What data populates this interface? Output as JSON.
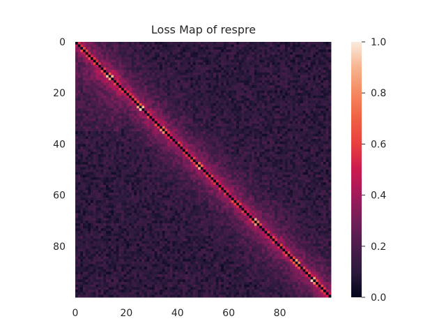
{
  "chart_data": {
    "type": "heatmap",
    "title": "Loss Map of respre",
    "xlabel": "",
    "ylabel": "",
    "grid_size": [
      100,
      100
    ],
    "x_ticks": [
      0,
      20,
      40,
      60,
      80
    ],
    "y_ticks": [
      0,
      20,
      40,
      60,
      80
    ],
    "colorbar": {
      "range": [
        0.0,
        1.0
      ],
      "ticks": [
        "0.0",
        "0.2",
        "0.4",
        "0.6",
        "0.8",
        "1.0"
      ],
      "colormap": "rocket",
      "colors": [
        "#03051a",
        "#2b1a3c",
        "#4c1d4b",
        "#711f57",
        "#a11a5b",
        "#cb1b4f",
        "#e83f3f",
        "#f06043",
        "#f58860",
        "#f6b48e",
        "#faebdd"
      ]
    },
    "pattern": {
      "description": "Diagonal is zero; near-diagonal band bright (~0.4-0.8); off-diagonal background ~0.05-0.25",
      "diagonal_value": 0.0,
      "band_peak_range": [
        0.4,
        0.8
      ],
      "background_range": [
        0.02,
        0.25
      ],
      "hotspot_rows": [
        13,
        25,
        34,
        48,
        70,
        86,
        93
      ]
    },
    "legend": "colorbar-right"
  }
}
